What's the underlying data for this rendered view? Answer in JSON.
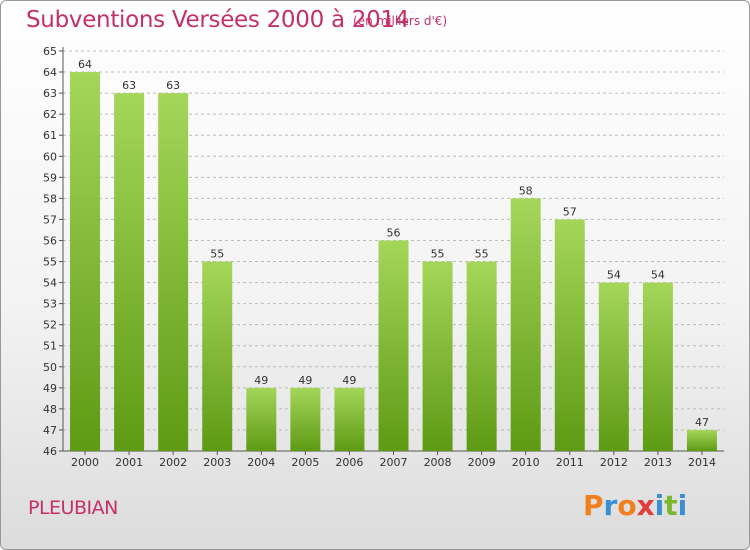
{
  "header": {
    "title": "Subventions Versées 2000 à 2014",
    "subtitle": "(en milliers d'€)"
  },
  "footer": {
    "commune": "PLEUBIAN",
    "logo_text": "Proxiti"
  },
  "colors": {
    "title": "#c4306a",
    "bar_top": "#a4d65a",
    "bar_bottom": "#5e9a14",
    "grid": "#bbbbbb",
    "logo_letters": [
      "#f07f1d",
      "#3a8fd1",
      "#f07f1d",
      "#e23d3d",
      "#3a8fd1",
      "#7ab92f",
      "#3a8fd1"
    ]
  },
  "chart_data": {
    "type": "bar",
    "title": "Subventions Versées 2000 à 2014",
    "subtitle": "(en milliers d'€)",
    "categories": [
      "2000",
      "2001",
      "2002",
      "2003",
      "2004",
      "2005",
      "2006",
      "2007",
      "2008",
      "2009",
      "2010",
      "2011",
      "2012",
      "2013",
      "2014"
    ],
    "values": [
      64,
      63,
      63,
      55,
      49,
      49,
      49,
      56,
      55,
      55,
      58,
      57,
      54,
      54,
      47
    ],
    "ylim": [
      46,
      65
    ],
    "yticks": [
      46,
      47,
      48,
      49,
      50,
      51,
      52,
      53,
      54,
      55,
      56,
      57,
      58,
      59,
      60,
      61,
      62,
      63,
      64,
      65
    ],
    "grid": "horizontal dashed",
    "data_labels": true
  }
}
